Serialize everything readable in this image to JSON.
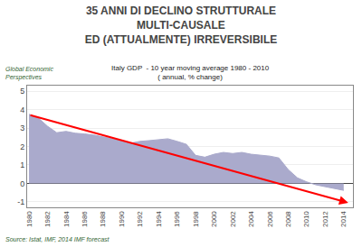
{
  "chart_data": {
    "type": "area",
    "title": "35 ANNI DI DECLINO STRUTTURALE\nMULTI-CAUSALE\nED (ATTUALMENTE) IRREVERSIBILE",
    "subtitle": "Italy GDP  - 10 year moving average 1980 - 2010\n( annual, % change)",
    "watermark": "Global Economic\nPerspectives",
    "source": "Source: Istat, IMF, 2014 IMF forecast",
    "x": [
      1980,
      1981,
      1982,
      1983,
      1984,
      1985,
      1986,
      1987,
      1988,
      1989,
      1990,
      1991,
      1992,
      1993,
      1994,
      1995,
      1996,
      1997,
      1998,
      1999,
      2000,
      2001,
      2002,
      2003,
      2004,
      2005,
      2006,
      2007,
      2008,
      2009,
      2010,
      2011,
      2012,
      2013,
      2014
    ],
    "values": [
      3.75,
      3.55,
      3.1,
      2.75,
      2.82,
      2.72,
      2.68,
      2.62,
      2.52,
      2.42,
      2.32,
      2.18,
      2.28,
      2.32,
      2.38,
      2.42,
      2.28,
      2.12,
      1.52,
      1.42,
      1.58,
      1.68,
      1.62,
      1.68,
      1.58,
      1.52,
      1.48,
      1.38,
      0.75,
      0.3,
      0.08,
      -0.08,
      -0.18,
      -0.28,
      -0.38
    ],
    "color": "#aaaacc",
    "trend": {
      "start": [
        1980,
        3.72
      ],
      "end": [
        2014.5,
        -1.05
      ],
      "color": "#ff0000"
    },
    "xlim": [
      1979.8,
      2015.0
    ],
    "xticks": [
      1980,
      1982,
      1984,
      1986,
      1988,
      1990,
      1992,
      1994,
      1996,
      1998,
      2000,
      2002,
      2004,
      2006,
      2008,
      2010,
      2012,
      2014
    ],
    "ylim": [
      -1.3,
      5.3
    ],
    "yticks": [
      -1,
      0,
      1,
      2,
      3,
      4,
      5
    ],
    "grid": true
  }
}
